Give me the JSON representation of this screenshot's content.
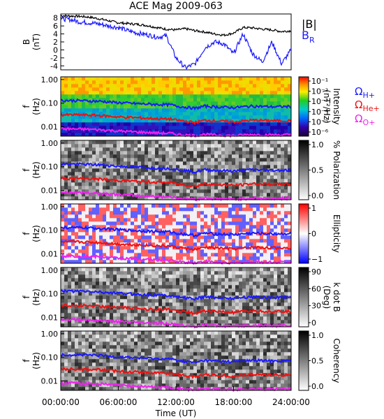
{
  "title": "ACE Mag 2009-063",
  "x_axis": {
    "label": "Time (UT)",
    "ticks": [
      "00:00:00",
      "06:00:00",
      "12:00:00",
      "18:00:00",
      "24:00:00"
    ],
    "range_hours": [
      0,
      24
    ]
  },
  "panel_b": {
    "ylabel": "B",
    "yunit": "(nT)",
    "yticks": [
      "8",
      "6",
      "4",
      "2",
      "0",
      "-2",
      "-4"
    ],
    "ylim": [
      -5,
      9
    ],
    "legend": {
      "b_total": "|B|",
      "br_main": "B",
      "br_sub": "R"
    },
    "colors": {
      "b_total": "#000000",
      "br": "#1a1aff"
    }
  },
  "freq_axis": {
    "ylabel": "f",
    "yunit": "(Hz)",
    "yticks": [
      "1.00",
      "0.10",
      "0.01"
    ],
    "log_range": [
      0.004,
      1.3
    ]
  },
  "gyro_legend": [
    {
      "main": "Ω",
      "sub": "H+",
      "color": "#1a1aff"
    },
    {
      "main": "Ω",
      "sub": "He+",
      "color": "#ee1111"
    },
    {
      "main": "Ω",
      "sub": "O+",
      "color": "#ee22ee"
    }
  ],
  "spectra_panels": [
    {
      "id": "intensity",
      "cbar_label_1": "Intensity",
      "cbar_label_2": "(nT²/Hz)",
      "colormap": "rainbow",
      "cbar_ticks": [
        "10⁻¹",
        "10⁻²",
        "10⁻³",
        "10⁻⁴",
        "10⁻⁵",
        "10⁻⁶"
      ]
    },
    {
      "id": "polarization",
      "cbar_label_1": "% Polarization",
      "cbar_label_2": "",
      "colormap": "gray",
      "cbar_ticks": [
        "1.0",
        "0.5",
        "0.0"
      ]
    },
    {
      "id": "ellipticity",
      "cbar_label_1": "Ellipticity",
      "cbar_label_2": "",
      "colormap": "bwr",
      "cbar_ticks": [
        "1",
        "0",
        "−1"
      ]
    },
    {
      "id": "kdotb",
      "cbar_label_1": "k dot B",
      "cbar_label_2": "(Deg)",
      "colormap": "gray",
      "cbar_ticks": [
        "90",
        "60",
        "30",
        "0"
      ]
    },
    {
      "id": "coherency",
      "cbar_label_1": "Coherency",
      "cbar_label_2": "",
      "colormap": "gray",
      "cbar_ticks": [
        "1.0",
        "0.5",
        "0.0"
      ]
    }
  ],
  "chart_data": {
    "type": "line",
    "x_unit": "hours UT",
    "b_total": {
      "name": "|B|",
      "x": [
        0,
        1,
        2,
        3,
        4,
        5,
        6,
        7,
        8,
        9,
        10,
        11,
        12,
        13,
        14,
        15,
        16,
        17,
        18,
        19,
        20,
        21,
        22,
        23,
        24
      ],
      "y": [
        8.6,
        8.5,
        8.4,
        8.2,
        7.8,
        7.3,
        6.8,
        6.6,
        6.4,
        6.1,
        5.6,
        5.2,
        5.0,
        5.3,
        4.8,
        4.5,
        4.0,
        3.7,
        4.2,
        5.6,
        5.5,
        5.2,
        5.0,
        4.6,
        4.8
      ]
    },
    "b_r": {
      "name": "BR",
      "x": [
        0,
        1,
        2,
        3,
        4,
        5,
        6,
        7,
        8,
        9,
        10,
        11,
        12,
        13,
        14,
        15,
        16,
        17,
        18,
        19,
        20,
        21,
        22,
        23,
        24
      ],
      "y": [
        7.8,
        7.6,
        7.0,
        6.8,
        6.5,
        6.0,
        5.6,
        4.8,
        4.2,
        3.8,
        3.2,
        3.5,
        -2.0,
        -4.5,
        -3.5,
        0.5,
        2.0,
        1.5,
        -1.0,
        4.0,
        -1.0,
        -3.0,
        2.0,
        -3.5,
        0.0
      ]
    },
    "gyrofrequencies_hz": {
      "x": [
        0,
        2,
        4,
        6,
        8,
        10,
        11.5,
        12,
        14,
        15,
        16,
        18,
        20,
        22,
        24
      ],
      "H+": [
        0.13,
        0.128,
        0.12,
        0.105,
        0.095,
        0.088,
        0.085,
        0.075,
        0.06,
        0.075,
        0.07,
        0.065,
        0.075,
        0.07,
        0.072
      ],
      "He+": [
        0.032,
        0.032,
        0.03,
        0.026,
        0.024,
        0.022,
        0.021,
        0.019,
        0.015,
        0.019,
        0.018,
        0.016,
        0.019,
        0.018,
        0.018
      ],
      "O+": [
        0.0082,
        0.008,
        0.0075,
        0.0066,
        0.006,
        0.0055,
        0.0053,
        0.0048,
        0.0042,
        0.0048,
        0.0045,
        0.0042,
        0.0047,
        0.0045,
        0.0046
      ]
    }
  }
}
